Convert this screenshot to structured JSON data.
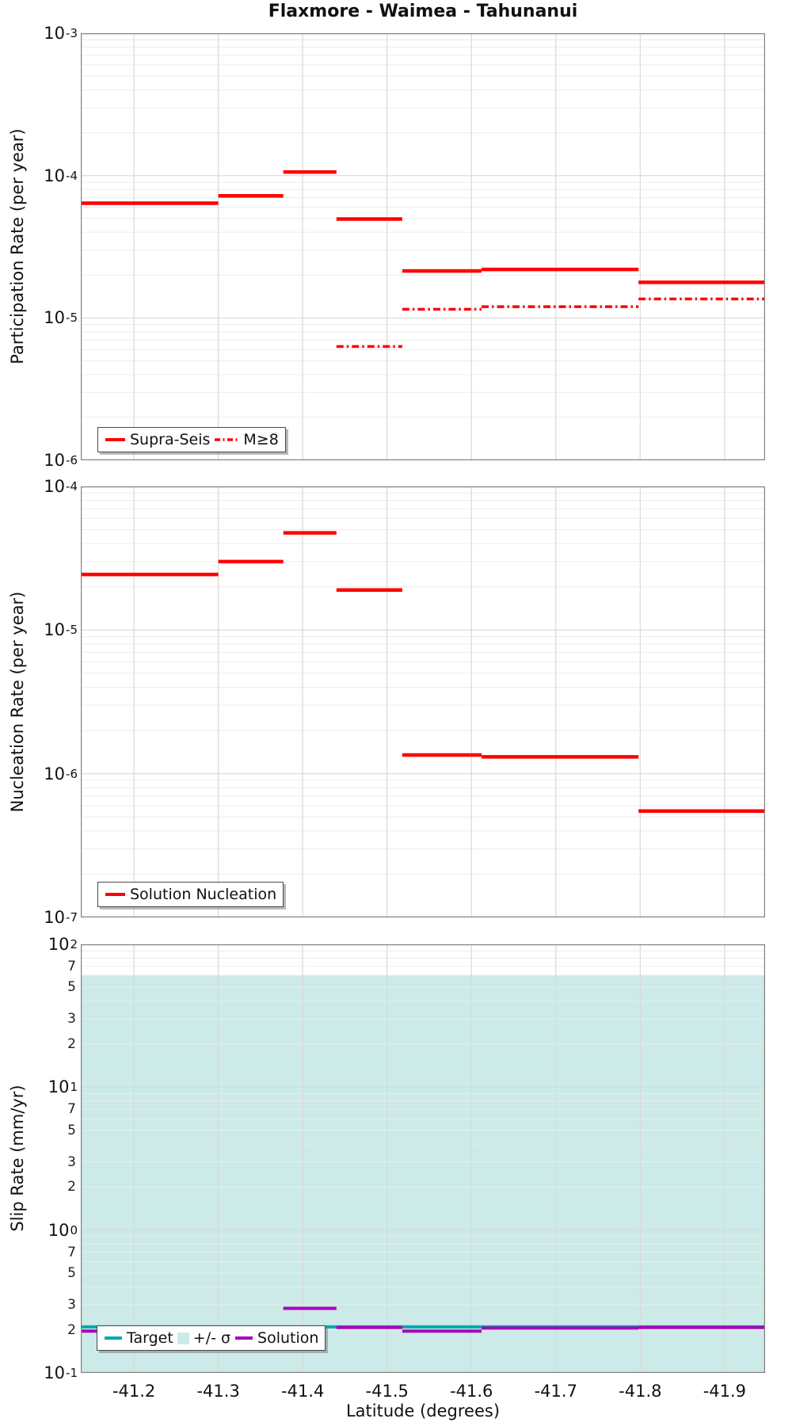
{
  "title": "Flaxmore - Waimea - Tahunanui",
  "xlabel": "Latitude (degrees)",
  "colors": {
    "red": "#FF0000",
    "teal": "#00A9AD",
    "purple": "#AA00BB",
    "band": "#CBEAE8",
    "grid_major": "#D9D9D9",
    "grid_minor": "#ECECEC",
    "frame": "#808080"
  },
  "x_axis": {
    "range": [
      -41.137,
      -41.948
    ],
    "ticks": [
      {
        "v": -41.2,
        "label": "-41.2"
      },
      {
        "v": -41.3,
        "label": "-41.3"
      },
      {
        "v": -41.4,
        "label": "-41.4"
      },
      {
        "v": -41.5,
        "label": "-41.5"
      },
      {
        "v": -41.6,
        "label": "-41.6"
      },
      {
        "v": -41.7,
        "label": "-41.7"
      },
      {
        "v": -41.8,
        "label": "-41.8"
      },
      {
        "v": -41.9,
        "label": "-41.9"
      }
    ]
  },
  "chart_data": [
    {
      "type": "line",
      "panel": "participation",
      "ylabel": "Participation Rate (per year)",
      "ylim": [
        1e-06,
        0.001
      ],
      "grid": true,
      "legend_position": "lower left",
      "yticks": [
        {
          "v": 0.001,
          "exp": "-3"
        },
        {
          "v": 0.0001,
          "exp": "-4"
        },
        {
          "v": 1e-05,
          "exp": "-5"
        },
        {
          "v": 1e-06,
          "exp": "-6"
        }
      ],
      "series": [
        {
          "name": "Supra-Seis",
          "style": "solid",
          "color": "#FF0000",
          "width": 4.5,
          "segments": [
            [
              -41.137,
              -41.3,
              6.4e-05
            ],
            [
              -41.3,
              -41.377,
              7.2e-05
            ],
            [
              -41.377,
              -41.44,
              0.000106
            ],
            [
              -41.44,
              -41.518,
              4.95e-05
            ],
            [
              -41.518,
              -41.612,
              2.14e-05
            ],
            [
              -41.612,
              -41.798,
              2.19e-05
            ],
            [
              -41.798,
              -41.948,
              1.78e-05
            ]
          ]
        },
        {
          "name": "M≥8",
          "style": "dashdot",
          "color": "#FF0000",
          "width": 3.5,
          "segments": [
            [
              -41.44,
              -41.518,
              6.3e-06
            ],
            [
              -41.518,
              -41.612,
              1.15e-05
            ],
            [
              -41.612,
              -41.798,
              1.2e-05
            ],
            [
              -41.798,
              -41.948,
              1.36e-05
            ]
          ]
        }
      ]
    },
    {
      "type": "line",
      "panel": "nucleation",
      "ylabel": "Nucleation Rate (per year)",
      "ylim": [
        1e-07,
        0.0001
      ],
      "grid": true,
      "legend_position": "lower left",
      "yticks": [
        {
          "v": 0.0001,
          "exp": "-4"
        },
        {
          "v": 1e-05,
          "exp": "-5"
        },
        {
          "v": 1e-06,
          "exp": "-6"
        },
        {
          "v": 1e-07,
          "exp": "-7"
        }
      ],
      "series": [
        {
          "name": "Solution Nucleation",
          "style": "solid",
          "color": "#FF0000",
          "width": 4.5,
          "segments": [
            [
              -41.137,
              -41.3,
              2.44e-05
            ],
            [
              -41.3,
              -41.377,
              3e-05
            ],
            [
              -41.377,
              -41.44,
              4.75e-05
            ],
            [
              -41.44,
              -41.518,
              1.9e-05
            ],
            [
              -41.518,
              -41.612,
              1.35e-06
            ],
            [
              -41.612,
              -41.798,
              1.31e-06
            ],
            [
              -41.798,
              -41.948,
              5.5e-07
            ]
          ]
        }
      ]
    },
    {
      "type": "line",
      "panel": "slip-rate",
      "ylabel": "Slip Rate (mm/yr)",
      "ylim": [
        0.1,
        100
      ],
      "grid": true,
      "legend_position": "lower left",
      "band": {
        "name": "+/- σ",
        "low": 0.1,
        "high": 61,
        "color": "#CBEAE8"
      },
      "yticks": [
        {
          "v": 100,
          "exp": "2"
        },
        {
          "v": 10,
          "exp": "1"
        },
        {
          "v": 1,
          "exp": "0"
        },
        {
          "v": 0.1,
          "exp": "-1"
        }
      ],
      "minor_yticks": [
        {
          "v": 70,
          "label": "7"
        },
        {
          "v": 50,
          "label": "5"
        },
        {
          "v": 30,
          "label": "3"
        },
        {
          "v": 20,
          "label": "2"
        },
        {
          "v": 7,
          "label": "7"
        },
        {
          "v": 5,
          "label": "5"
        },
        {
          "v": 3,
          "label": "3"
        },
        {
          "v": 2,
          "label": "2"
        },
        {
          "v": 0.7,
          "label": "7"
        },
        {
          "v": 0.5,
          "label": "5"
        },
        {
          "v": 0.3,
          "label": "3"
        },
        {
          "v": 0.2,
          "label": "2"
        }
      ],
      "series": [
        {
          "name": "Target",
          "style": "solid",
          "color": "#00A9AD",
          "width": 4,
          "segments": [
            [
              -41.137,
              -41.948,
              0.21
            ]
          ]
        },
        {
          "name": "Solution",
          "style": "solid",
          "color": "#AA00BB",
          "width": 4,
          "segments": [
            [
              -41.137,
              -41.3,
              0.196
            ],
            [
              -41.3,
              -41.377,
              0.208
            ],
            [
              -41.377,
              -41.44,
              0.283
            ],
            [
              -41.44,
              -41.518,
              0.208
            ],
            [
              -41.518,
              -41.612,
              0.196
            ],
            [
              -41.612,
              -41.798,
              0.206
            ],
            [
              -41.798,
              -41.948,
              0.208
            ]
          ]
        }
      ]
    }
  ],
  "legends": [
    {
      "entries": [
        {
          "label": "Supra-Seis",
          "swatch": "line",
          "color": "#FF0000",
          "dash": "solid"
        },
        {
          "label": "M≥8",
          "swatch": "line",
          "color": "#FF0000",
          "dash": "dashdot"
        }
      ]
    },
    {
      "entries": [
        {
          "label": "Solution Nucleation",
          "swatch": "line",
          "color": "#FF0000",
          "dash": "solid"
        }
      ]
    },
    {
      "entries": [
        {
          "label": "Target",
          "swatch": "line",
          "color": "#00A9AD",
          "dash": "solid"
        },
        {
          "label": "+/- σ",
          "swatch": "patch",
          "color": "#CBEAE8"
        },
        {
          "label": "Solution",
          "swatch": "line",
          "color": "#AA00BB",
          "dash": "solid"
        }
      ]
    }
  ]
}
